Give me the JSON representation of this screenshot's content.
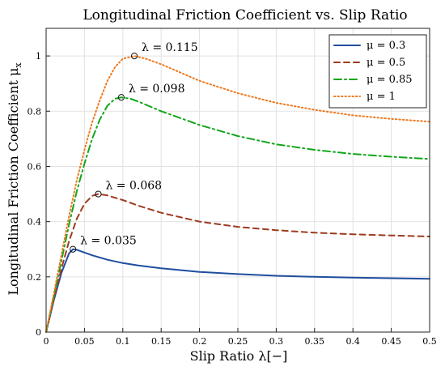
{
  "chart_data": {
    "type": "line",
    "title": "Longitudinal Friction Coefficient vs. Slip Ratio",
    "xlabel": "Slip Ratio λ[−]",
    "ylabel": "Longitudinal Friction Coefficient μ",
    "ylabel_sub": "x",
    "xlim": [
      0,
      0.5
    ],
    "ylim": [
      0,
      1.1
    ],
    "grid": true,
    "legend_position": "top-right",
    "x_ticks": [
      "0",
      "0.05",
      "0.1",
      "0.15",
      "0.2",
      "0.25",
      "0.3",
      "0.35",
      "0.4",
      "0.45",
      "0.5"
    ],
    "y_ticks": [
      "0",
      "0.2",
      "0.4",
      "0.6",
      "0.8",
      "1"
    ],
    "series": [
      {
        "name": "μ = 0.3",
        "color": "#1f4e9e",
        "dash": "solid",
        "x": [
          0,
          0.01,
          0.02,
          0.03,
          0.035,
          0.04,
          0.05,
          0.06,
          0.08,
          0.1,
          0.12,
          0.15,
          0.2,
          0.25,
          0.3,
          0.35,
          0.4,
          0.45,
          0.5
        ],
        "y": [
          0,
          0.115,
          0.215,
          0.285,
          0.3,
          0.298,
          0.288,
          0.278,
          0.262,
          0.25,
          0.241,
          0.231,
          0.218,
          0.21,
          0.204,
          0.2,
          0.197,
          0.195,
          0.193
        ]
      },
      {
        "name": "μ = 0.5",
        "color": "#9e3a1e",
        "dash": "dashed",
        "x": [
          0,
          0.01,
          0.02,
          0.03,
          0.04,
          0.05,
          0.06,
          0.068,
          0.08,
          0.1,
          0.12,
          0.15,
          0.2,
          0.25,
          0.3,
          0.35,
          0.4,
          0.45,
          0.5
        ],
        "y": [
          0,
          0.12,
          0.23,
          0.33,
          0.41,
          0.465,
          0.493,
          0.5,
          0.495,
          0.478,
          0.458,
          0.432,
          0.4,
          0.381,
          0.369,
          0.36,
          0.354,
          0.35,
          0.346
        ]
      },
      {
        "name": "μ = 0.85",
        "color": "#12a51a",
        "dash": "dashdot",
        "x": [
          0,
          0.01,
          0.02,
          0.03,
          0.04,
          0.05,
          0.06,
          0.07,
          0.08,
          0.09,
          0.098,
          0.11,
          0.12,
          0.15,
          0.2,
          0.25,
          0.3,
          0.35,
          0.4,
          0.45,
          0.5
        ],
        "y": [
          0,
          0.13,
          0.26,
          0.39,
          0.51,
          0.61,
          0.7,
          0.77,
          0.82,
          0.845,
          0.85,
          0.845,
          0.835,
          0.8,
          0.75,
          0.71,
          0.68,
          0.66,
          0.645,
          0.635,
          0.627
        ]
      },
      {
        "name": "μ = 1",
        "color": "#ee7a20",
        "dash": "dotted",
        "x": [
          0,
          0.01,
          0.02,
          0.03,
          0.04,
          0.05,
          0.06,
          0.07,
          0.08,
          0.09,
          0.1,
          0.115,
          0.13,
          0.15,
          0.2,
          0.25,
          0.3,
          0.35,
          0.4,
          0.45,
          0.5
        ],
        "y": [
          0,
          0.14,
          0.28,
          0.42,
          0.55,
          0.66,
          0.76,
          0.84,
          0.91,
          0.96,
          0.99,
          1.0,
          0.99,
          0.97,
          0.91,
          0.865,
          0.83,
          0.805,
          0.785,
          0.772,
          0.762
        ]
      }
    ],
    "annotations": [
      {
        "text": "λ = 0.035",
        "x": 0.035,
        "y": 0.3
      },
      {
        "text": "λ = 0.068",
        "x": 0.068,
        "y": 0.5
      },
      {
        "text": "λ = 0.098",
        "x": 0.098,
        "y": 0.85
      },
      {
        "text": "λ = 0.115",
        "x": 0.115,
        "y": 1.0
      }
    ]
  }
}
